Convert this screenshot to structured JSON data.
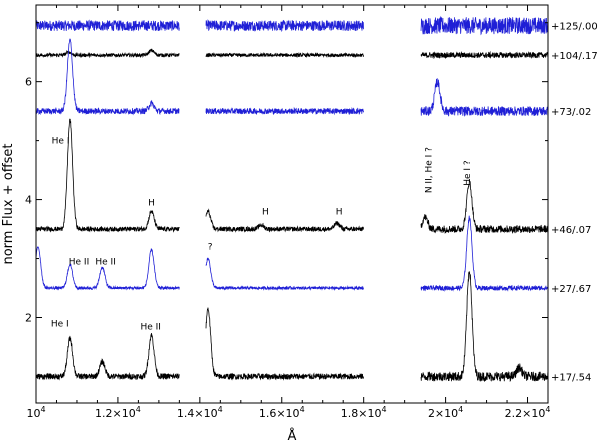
{
  "chart_data": {
    "type": "line",
    "xlabel": "Å",
    "ylabel": "norm Flux + offset",
    "xlim": [
      10000,
      22500
    ],
    "ylim": [
      0.55,
      7.3
    ],
    "grid": false,
    "x_ticks": [
      {
        "value": 10000,
        "base": "10",
        "exp": "4"
      },
      {
        "value": 12000,
        "base": "1.2×10",
        "exp": "4"
      },
      {
        "value": 14000,
        "base": "1.4×10",
        "exp": "4"
      },
      {
        "value": 16000,
        "base": "1.6×10",
        "exp": "4"
      },
      {
        "value": 18000,
        "base": "1.8×10",
        "exp": "4"
      },
      {
        "value": 20000,
        "base": "2×10",
        "exp": "4"
      },
      {
        "value": 22000,
        "base": "2.2×10",
        "exp": "4"
      }
    ],
    "y_ticks": [
      {
        "value": 2,
        "label": "2"
      },
      {
        "value": 4,
        "label": "4"
      },
      {
        "value": 6,
        "label": "6"
      }
    ],
    "segments": [
      [
        10000,
        13500
      ],
      [
        14150,
        18000
      ],
      [
        19400,
        22500
      ]
    ],
    "series": [
      {
        "name": "+125/.00",
        "color": "#1f1fd6",
        "baseline": 6.95,
        "noise": 0.09,
        "features": [
          [
            13500,
            6.95,
            6.95
          ],
          [
            14150,
            6.95,
            6.95
          ]
        ]
      },
      {
        "name": "+104/.17",
        "color": "#000000",
        "baseline": 6.45,
        "noise": 0.03,
        "features": [
          [
            10800,
            6.5,
            6.55
          ],
          [
            12820,
            6.5,
            6.58
          ],
          [
            19600,
            6.6,
            6.6
          ]
        ]
      },
      {
        "name": "+73/.02",
        "color": "#1f1fd6",
        "baseline": 5.5,
        "noise": 0.05,
        "features": [
          [
            10830,
            5.55,
            6.75
          ],
          [
            12820,
            5.55,
            5.68
          ],
          [
            19800,
            5.4,
            5.9
          ],
          [
            20100,
            5.3,
            5.3
          ]
        ]
      },
      {
        "name": "+46/.07",
        "color": "#000000",
        "baseline": 3.5,
        "noise": 0.04,
        "features": [
          [
            10830,
            3.55,
            5.4
          ],
          [
            12820,
            3.55,
            3.85
          ],
          [
            14200,
            3.6,
            3.9
          ],
          [
            15500,
            3.55,
            3.62
          ],
          [
            17350,
            3.55,
            3.65
          ],
          [
            19500,
            3.7,
            3.9
          ],
          [
            20580,
            3.6,
            4.4
          ]
        ]
      },
      {
        "name": "+27/.67",
        "color": "#1f1fd6",
        "baseline": 2.5,
        "noise": 0.025,
        "features": [
          [
            10050,
            2.5,
            3.2
          ],
          [
            10830,
            2.55,
            2.95
          ],
          [
            11620,
            2.5,
            2.85
          ],
          [
            12820,
            2.5,
            3.15
          ],
          [
            14200,
            2.6,
            3.1
          ],
          [
            20580,
            2.6,
            3.8
          ]
        ]
      },
      {
        "name": "+17/.54",
        "color": "#000000",
        "baseline": 1.0,
        "noise": 0.05,
        "features": [
          [
            10830,
            1.1,
            1.75
          ],
          [
            11620,
            1.05,
            1.3
          ],
          [
            12820,
            1.05,
            1.75
          ],
          [
            14200,
            1.1,
            2.25
          ],
          [
            20580,
            1.1,
            2.9
          ],
          [
            21800,
            1.0,
            1.15
          ]
        ]
      }
    ],
    "annotations": [
      {
        "text": "He I",
        "x": 10600,
        "y": 4.95
      },
      {
        "text": "He II",
        "x": 11050,
        "y": 2.9
      },
      {
        "text": "He II",
        "x": 11700,
        "y": 2.9
      },
      {
        "text": "H",
        "x": 12820,
        "y": 3.9
      },
      {
        "text": "H",
        "x": 15600,
        "y": 3.75
      },
      {
        "text": "H",
        "x": 17400,
        "y": 3.75
      },
      {
        "text": "?",
        "x": 14250,
        "y": 3.15
      },
      {
        "text": "He I",
        "x": 10580,
        "y": 1.85
      },
      {
        "text": "He II",
        "x": 12800,
        "y": 1.8
      },
      {
        "text": "N II, He I ?",
        "x": 19650,
        "y": 4.5,
        "vertical": true
      },
      {
        "text": "He I ?",
        "x": 20600,
        "y": 4.45,
        "vertical": true
      }
    ]
  }
}
